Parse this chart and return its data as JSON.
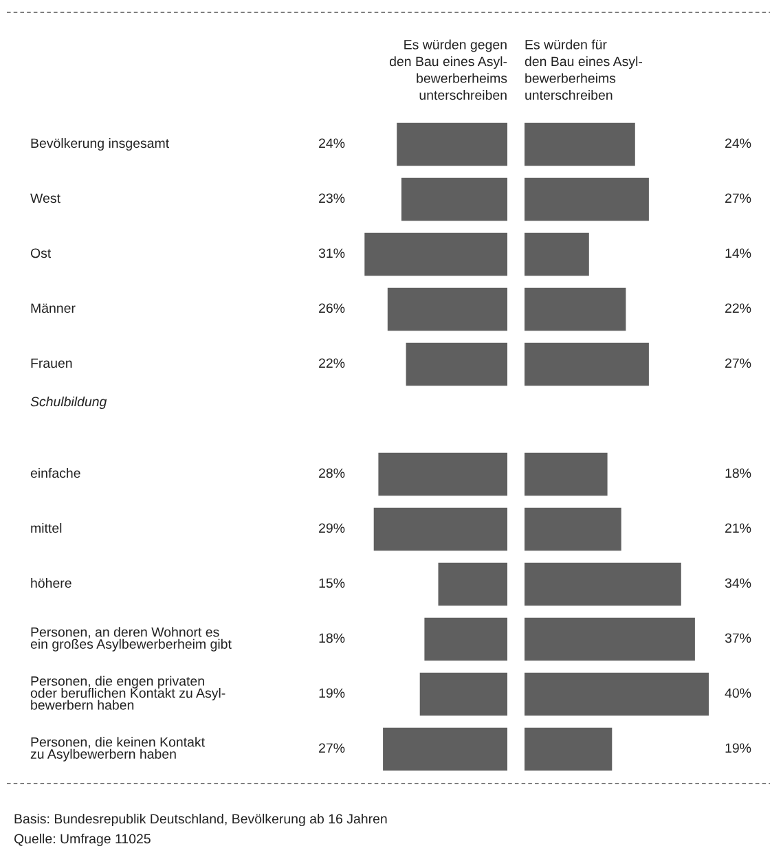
{
  "chart_data": [
    {
      "type": "bar",
      "orientation": "horizontal",
      "title": "Es würden gegen\nden Bau eines Asyl-\nbewerberheims\nunterschreiben",
      "categories": [
        "Bevölkerung insgesamt",
        "West",
        "Ost",
        "Männer",
        "Frauen",
        "Schulbildung",
        "einfache",
        "mittel",
        "höhere",
        "Personen, an deren Wohnort es\nein großes Asylbewerberheim gibt",
        "Personen, die engen privaten\noder beruflichen Kontakt zu Asyl-\nbewerbern haben",
        "Personen, die keinen Kontakt\nzu Asylbewerbern haben"
      ],
      "values": [
        24,
        23,
        31,
        26,
        22,
        null,
        28,
        29,
        15,
        18,
        19,
        27
      ],
      "value_labels": [
        "24%",
        "23%",
        "31%",
        "26%",
        "22%",
        null,
        "28%",
        "29%",
        "15%",
        "18%",
        "19%",
        "27%"
      ],
      "color": "#5f5f5f",
      "tick_labels": "y",
      "annotations": [
        "Basis: Bundesrepublik Deutschland, Bevölkerung ab 16 Jahren",
        "Quelle: Umfrage 11025"
      ]
    },
    {
      "type": "bar",
      "orientation": "horizontal",
      "title": "Es würden für\nden Bau eines Asyl-\nbewerberheims\nunterschreiben",
      "values": [
        24,
        27,
        14,
        22,
        27,
        null,
        18,
        21,
        34,
        37,
        40,
        19
      ],
      "value_labels": [
        "24%",
        "27%",
        "14%",
        "22%",
        "27%",
        null,
        "18%",
        "21%",
        "34%",
        "37%",
        "40%",
        "19%"
      ],
      "color": "#5f5f5f",
      "tick_labels": false
    }
  ]
}
